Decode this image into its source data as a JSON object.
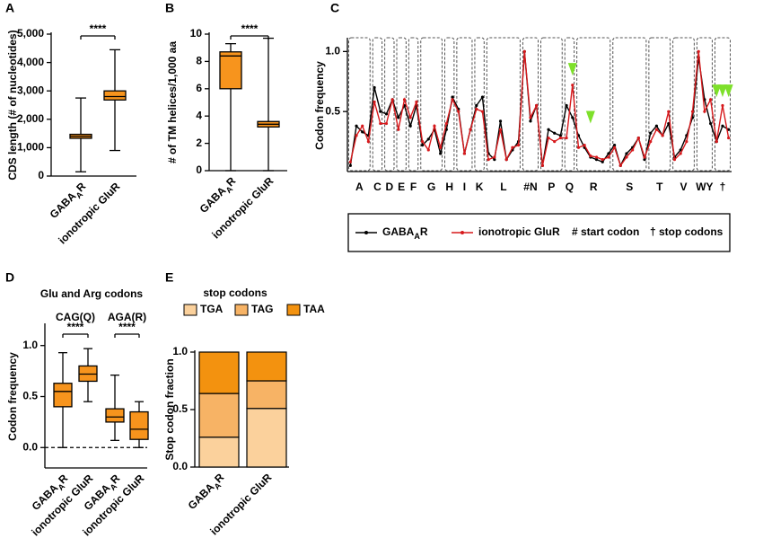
{
  "chart_data": [
    {
      "panel": "A",
      "type": "box",
      "ylabel": "CDS length (# of nucleotides)",
      "categories": [
        "GABAAR",
        "ionotropic GluR"
      ],
      "boxes": [
        {
          "min": 150,
          "q1": 1330,
          "median": 1400,
          "q3": 1470,
          "max": 2750
        },
        {
          "min": 900,
          "q1": 2680,
          "median": 2800,
          "q3": 3000,
          "max": 4450
        }
      ],
      "ylim": [
        0,
        5000
      ],
      "yticks": [
        0,
        {
          "value": 1000,
          "label": "1,000"
        },
        {
          "value": 2000,
          "label": "2,000"
        },
        {
          "value": 3000,
          "label": "3,000"
        },
        {
          "value": 4000,
          "label": "4,000"
        },
        {
          "value": 5000,
          "label": "5,000"
        }
      ],
      "color": "#f7941d",
      "significance": [
        "****"
      ]
    },
    {
      "panel": "B",
      "type": "box",
      "ylabel": "# of TM helices/1,000 aa",
      "categories": [
        "GABAAR",
        "ionotropic GluR"
      ],
      "boxes": [
        {
          "min": 0,
          "q1": 6,
          "median": 8.4,
          "q3": 8.7,
          "max": 9.3
        },
        {
          "min": 0,
          "q1": 3.2,
          "median": 3.4,
          "q3": 3.6,
          "max": 9.7
        }
      ],
      "ylim": [
        0,
        10
      ],
      "yticks": [
        0,
        2,
        4,
        6,
        8,
        10
      ],
      "color": "#f7941d",
      "significance": [
        "****"
      ]
    },
    {
      "panel": "C",
      "type": "line",
      "ylabel": "Codon frequency",
      "categories": [
        null,
        "A",
        null,
        null,
        "C",
        null,
        "D",
        null,
        "E",
        null,
        "F",
        null,
        null,
        "G",
        null,
        null,
        "H",
        null,
        null,
        "I",
        null,
        "K",
        null,
        null,
        null,
        "L",
        null,
        null,
        null,
        null,
        "#N",
        null,
        null,
        "P",
        null,
        null,
        "Q",
        null,
        null,
        null,
        "R",
        null,
        null,
        null,
        null,
        null,
        "S",
        null,
        null,
        null,
        null,
        "T",
        null,
        null,
        null,
        "V",
        null,
        null,
        null,
        "WY",
        null,
        null,
        "†",
        null
      ],
      "series": [
        {
          "name": "GABAAR",
          "color": "#000000",
          "values": [
            0.05,
            0.38,
            0.33,
            0.3,
            0.7,
            0.5,
            0.48,
            0.6,
            0.45,
            0.55,
            0.38,
            0.55,
            0.22,
            0.27,
            0.35,
            0.15,
            0.35,
            0.62,
            0.52,
            0.15,
            0.35,
            0.55,
            0.62,
            0.15,
            0.1,
            0.42,
            0.1,
            0.18,
            0.25,
            1.0,
            0.42,
            0.55,
            0.05,
            0.35,
            0.32,
            0.3,
            0.55,
            0.45,
            0.3,
            0.2,
            0.12,
            0.1,
            0.08,
            0.15,
            0.22,
            0.05,
            0.15,
            0.2,
            0.28,
            0.1,
            0.32,
            0.38,
            0.3,
            0.4,
            0.12,
            0.18,
            0.3,
            0.45,
            0.95,
            0.6,
            0.4,
            0.25,
            0.38,
            0.35
          ]
        },
        {
          "name": "ionotropic GluR",
          "color": "#d7191c",
          "values": [
            0.08,
            0.3,
            0.38,
            0.25,
            0.58,
            0.4,
            0.4,
            0.6,
            0.35,
            0.6,
            0.45,
            0.58,
            0.25,
            0.18,
            0.38,
            0.2,
            0.4,
            0.6,
            0.5,
            0.15,
            0.35,
            0.52,
            0.5,
            0.1,
            0.12,
            0.35,
            0.1,
            0.2,
            0.22,
            1.0,
            0.45,
            0.55,
            0.05,
            0.28,
            0.25,
            0.28,
            0.28,
            0.72,
            0.2,
            0.22,
            0.13,
            0.12,
            0.1,
            0.12,
            0.2,
            0.05,
            0.12,
            0.18,
            0.28,
            0.12,
            0.25,
            0.35,
            0.3,
            0.5,
            0.1,
            0.15,
            0.25,
            0.5,
            1.0,
            0.5,
            0.6,
            0.25,
            0.55,
            0.28
          ]
        }
      ],
      "ylim": [
        0,
        1.1
      ],
      "yticks": [
        0.5,
        {
          "value": 1,
          "label": "1.0"
        }
      ],
      "legend_notes": [
        "# start codon",
        "† stop codons"
      ]
    },
    {
      "panel": "D",
      "type": "box",
      "title": "Glu and Arg codons",
      "ylabel": "Codon frequency",
      "groups": [
        "CAG(Q)",
        "AGA(R)"
      ],
      "categories": [
        "GABAAR",
        "ionotropic GluR",
        "GABAAR",
        "ionotropic GluR"
      ],
      "boxes": [
        {
          "min": 0,
          "q1": 0.4,
          "median": 0.55,
          "q3": 0.63,
          "max": 0.93
        },
        {
          "min": 0.45,
          "q1": 0.65,
          "median": 0.72,
          "q3": 0.8,
          "max": 0.97
        },
        {
          "min": 0.07,
          "q1": 0.25,
          "median": 0.3,
          "q3": 0.38,
          "max": 0.71
        },
        {
          "min": 0,
          "q1": 0.08,
          "median": 0.18,
          "q3": 0.35,
          "max": 0.45
        }
      ],
      "ylim": [
        -0.2,
        1.2
      ],
      "yticks": [
        {
          "value": 0,
          "label": "0.0"
        },
        0.5,
        {
          "value": 1,
          "label": "1.0"
        }
      ],
      "color": "#f7941d",
      "significance": [
        "****",
        "****"
      ]
    },
    {
      "panel": "E",
      "type": "stacked_bar",
      "title": "stop codons",
      "ylabel": "Stop codon fraction",
      "categories": [
        "GABAAR",
        "ionotropic GluR"
      ],
      "series": [
        {
          "name": "TGA",
          "color": "#fbd19c",
          "values": [
            0.26,
            0.51
          ]
        },
        {
          "name": "TAG",
          "color": "#f7b365",
          "values": [
            0.38,
            0.24
          ]
        },
        {
          "name": "TAA",
          "color": "#f3920f",
          "values": [
            0.36,
            0.25
          ]
        }
      ],
      "ylim": [
        0,
        1
      ],
      "yticks": [
        {
          "value": 0,
          "label": "0.0"
        },
        0.5,
        {
          "value": 1,
          "label": "1.0"
        }
      ]
    }
  ]
}
